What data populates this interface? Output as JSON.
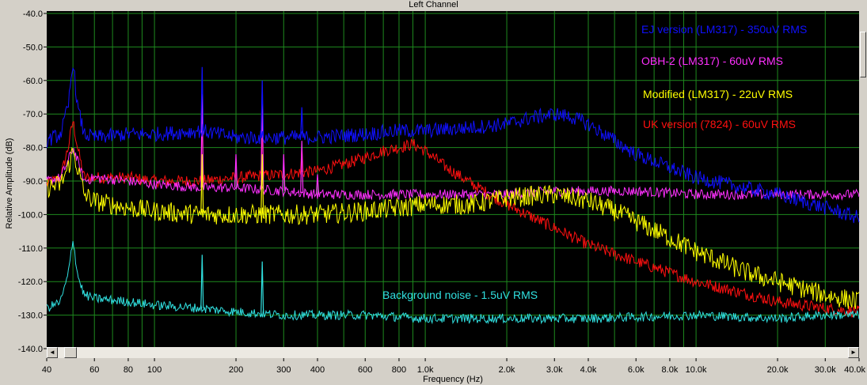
{
  "window": {
    "title": "Left Channel"
  },
  "chart_data": {
    "type": "line",
    "title": "Left Channel",
    "xlabel": "Frequency (Hz)",
    "ylabel": "Relative Amplitude (dB)",
    "x_scale": "log",
    "xlim": [
      40,
      40000
    ],
    "ylim": [
      -140,
      -40
    ],
    "grid": true,
    "background_color": "#000000",
    "grid_color": "#1e8a1e",
    "x_ticks": [
      {
        "value": 40,
        "label": "40"
      },
      {
        "value": 60,
        "label": "60"
      },
      {
        "value": 80,
        "label": "80"
      },
      {
        "value": 100,
        "label": "100"
      },
      {
        "value": 200,
        "label": "200"
      },
      {
        "value": 300,
        "label": "300"
      },
      {
        "value": 400,
        "label": "400"
      },
      {
        "value": 600,
        "label": "600"
      },
      {
        "value": 800,
        "label": "800"
      },
      {
        "value": 1000,
        "label": "1.0k"
      },
      {
        "value": 2000,
        "label": "2.0k"
      },
      {
        "value": 3000,
        "label": "3.0k"
      },
      {
        "value": 4000,
        "label": "4.0k"
      },
      {
        "value": 6000,
        "label": "6.0k"
      },
      {
        "value": 8000,
        "label": "8.0k"
      },
      {
        "value": 10000,
        "label": "10.0k"
      },
      {
        "value": 20000,
        "label": "20.0k"
      },
      {
        "value": 30000,
        "label": "30.0k"
      },
      {
        "value": 40000,
        "label": "40.0k"
      }
    ],
    "y_ticks": [
      {
        "value": -40,
        "label": "-40.0"
      },
      {
        "value": -50,
        "label": "-50.0"
      },
      {
        "value": -60,
        "label": "-60.0"
      },
      {
        "value": -70,
        "label": "-70.0"
      },
      {
        "value": -80,
        "label": "-80.0"
      },
      {
        "value": -90,
        "label": "-90.0"
      },
      {
        "value": -100,
        "label": "-100.0"
      },
      {
        "value": -110,
        "label": "-110.0"
      },
      {
        "value": -120,
        "label": "-120.0"
      },
      {
        "value": -130,
        "label": "-130.0"
      },
      {
        "value": -140,
        "label": "-140.0"
      }
    ],
    "series": [
      {
        "name": "EJ version (LM317) - 350uV RMS",
        "color": "#1010ff",
        "noise": 2.2,
        "x": [
          40,
          45,
          48,
          50,
          52,
          55,
          60,
          80,
          100,
          150,
          200,
          300,
          400,
          600,
          800,
          1000,
          1500,
          2000,
          2500,
          3000,
          3500,
          4000,
          5000,
          6000,
          8000,
          10000,
          15000,
          20000,
          30000,
          40000
        ],
        "y": [
          -78,
          -76,
          -68,
          -54,
          -68,
          -76,
          -77,
          -76,
          -76,
          -75,
          -77,
          -77,
          -77,
          -76,
          -75,
          -75,
          -74,
          -73,
          -71,
          -70,
          -71,
          -73,
          -78,
          -82,
          -86,
          -89,
          -92,
          -94,
          -98,
          -101
        ],
        "peaks": [
          {
            "x": 150,
            "y": -56
          },
          {
            "x": 250,
            "y": -60
          },
          {
            "x": 350,
            "y": -68
          }
        ]
      },
      {
        "name": "OBH-2 (LM317) - 60uV RMS",
        "color": "#ff30ff",
        "noise": 1.5,
        "x": [
          40,
          45,
          48,
          50,
          52,
          55,
          60,
          80,
          100,
          150,
          200,
          300,
          400,
          600,
          800,
          1000,
          2000,
          3000,
          4000,
          6000,
          10000,
          20000,
          30000,
          40000
        ],
        "y": [
          -90,
          -89,
          -84,
          -80,
          -84,
          -90,
          -89,
          -90,
          -91,
          -92,
          -92,
          -93,
          -94,
          -94,
          -94,
          -94,
          -94,
          -93,
          -93,
          -93,
          -94,
          -94,
          -94,
          -94
        ],
        "peaks": [
          {
            "x": 150,
            "y": -64
          },
          {
            "x": 200,
            "y": -82
          },
          {
            "x": 250,
            "y": -62
          },
          {
            "x": 300,
            "y": -82
          },
          {
            "x": 350,
            "y": -78
          },
          {
            "x": 400,
            "y": -88
          }
        ]
      },
      {
        "name": "Modified (LM317) - 22uV RMS",
        "color": "#ffff00",
        "noise": 3.0,
        "x": [
          40,
          45,
          48,
          50,
          52,
          55,
          60,
          80,
          100,
          150,
          200,
          300,
          400,
          600,
          800,
          1000,
          1500,
          2000,
          3000,
          4000,
          5000,
          6000,
          8000,
          10000,
          15000,
          20000,
          30000,
          40000
        ],
        "y": [
          -92,
          -91,
          -86,
          -81,
          -86,
          -94,
          -96,
          -98,
          -99,
          -100,
          -100,
          -100,
          -100,
          -99,
          -98,
          -97,
          -97,
          -95,
          -94,
          -96,
          -99,
          -102,
          -107,
          -111,
          -117,
          -120,
          -124,
          -126
        ],
        "peaks": [
          {
            "x": 150,
            "y": -82
          },
          {
            "x": 250,
            "y": -82
          }
        ]
      },
      {
        "name": "UK version (7824) - 60uV RMS",
        "color": "#ff1010",
        "noise": 1.8,
        "x": [
          40,
          45,
          48,
          50,
          52,
          55,
          60,
          80,
          100,
          150,
          200,
          300,
          400,
          500,
          600,
          700,
          800,
          900,
          1000,
          1200,
          1500,
          2000,
          3000,
          4000,
          6000,
          10000,
          20000,
          30000,
          40000
        ],
        "y": [
          -91,
          -89,
          -80,
          -72,
          -80,
          -89,
          -89,
          -89,
          -90,
          -90,
          -89,
          -88,
          -87,
          -85,
          -83,
          -81,
          -80,
          -79,
          -81,
          -86,
          -91,
          -97,
          -104,
          -109,
          -114,
          -120,
          -126,
          -128,
          -129
        ],
        "peaks": [
          {
            "x": 150,
            "y": -70
          },
          {
            "x": 250,
            "y": -74
          },
          {
            "x": 350,
            "y": -80
          }
        ]
      },
      {
        "name": "Background noise - 1.5uV RMS",
        "color": "#30e0e0",
        "noise": 1.4,
        "x": [
          40,
          45,
          48,
          50,
          52,
          55,
          60,
          80,
          100,
          150,
          200,
          300,
          400,
          600,
          1000,
          2000,
          4000,
          10000,
          20000,
          30000,
          40000
        ],
        "y": [
          -128,
          -126,
          -118,
          -107,
          -118,
          -124,
          -125,
          -126,
          -127,
          -128,
          -129,
          -130,
          -130,
          -130,
          -131,
          -131,
          -131,
          -130,
          -131,
          -130,
          -130
        ],
        "peaks": [
          {
            "x": 150,
            "y": -112
          },
          {
            "x": 250,
            "y": -114
          }
        ]
      }
    ]
  }
}
